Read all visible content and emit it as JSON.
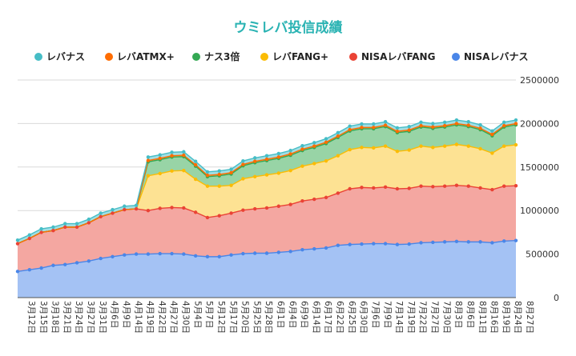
{
  "chart_data": {
    "type": "area",
    "stacked": true,
    "title": "ウミレバ投信成績",
    "legend_position": "top",
    "grid": true,
    "ylim": [
      0,
      2500000
    ],
    "yticks": [
      0,
      500000,
      1000000,
      1500000,
      2000000,
      2500000
    ],
    "x": [
      "3月12日",
      "3月15日",
      "3月18日",
      "3月21日",
      "3月24日",
      "3月27日",
      "3月31日",
      "4月6日",
      "4月9日",
      "4月14日",
      "4月19日",
      "4月22日",
      "4月27日",
      "4月30日",
      "5月4日",
      "5月7日",
      "5月12日",
      "5月17日",
      "5月20日",
      "5月25日",
      "5月28日",
      "6月1日",
      "6月4日",
      "6月9日",
      "6月14日",
      "6月17日",
      "6月22日",
      "6月25日",
      "6月30日",
      "7月6日",
      "7月9日",
      "7月14日",
      "7月19日",
      "7月22日",
      "7月27日",
      "7月30日",
      "8月3日",
      "8月6日",
      "8月11日",
      "8月16日",
      "8月19日",
      "8月24日",
      "8月27日"
    ],
    "series": [
      {
        "name": "NISAレバナス",
        "color": "#4a86e8",
        "fill": "#a4c2f4",
        "values": [
          300000,
          320000,
          340000,
          370000,
          380000,
          400000,
          420000,
          450000,
          470000,
          490000,
          500000,
          500000,
          505000,
          505000,
          500000,
          480000,
          470000,
          470000,
          490000,
          505000,
          510000,
          510000,
          520000,
          530000,
          550000,
          560000,
          570000,
          600000,
          610000,
          615000,
          620000,
          620000,
          610000,
          615000,
          630000,
          635000,
          640000,
          645000,
          640000,
          640000,
          630000,
          650000,
          655000
        ]
      },
      {
        "name": "NISAレバFANG",
        "color": "#ea4335",
        "fill": "#f4a7a1",
        "values": [
          320000,
          360000,
          410000,
          400000,
          430000,
          410000,
          440000,
          480000,
          500000,
          520000,
          520000,
          500000,
          520000,
          530000,
          530000,
          500000,
          450000,
          470000,
          480000,
          500000,
          510000,
          520000,
          530000,
          540000,
          560000,
          570000,
          580000,
          600000,
          640000,
          650000,
          640000,
          650000,
          640000,
          640000,
          650000,
          640000,
          640000,
          645000,
          640000,
          620000,
          610000,
          630000,
          630000
        ]
      },
      {
        "name": "レバFANG+",
        "color": "#fbbc04",
        "fill": "#fde293",
        "values": [
          0,
          0,
          0,
          0,
          0,
          0,
          0,
          0,
          0,
          0,
          0,
          400000,
          400000,
          420000,
          430000,
          380000,
          360000,
          340000,
          320000,
          360000,
          370000,
          380000,
          380000,
          390000,
          400000,
          410000,
          420000,
          430000,
          450000,
          460000,
          460000,
          470000,
          430000,
          440000,
          460000,
          450000,
          460000,
          470000,
          460000,
          450000,
          420000,
          460000,
          470000
        ]
      },
      {
        "name": "ナス3倍",
        "color": "#34a853",
        "fill": "#98d4a6",
        "values": [
          0,
          0,
          0,
          0,
          0,
          0,
          0,
          0,
          0,
          0,
          0,
          160000,
          160000,
          160000,
          160000,
          150000,
          110000,
          120000,
          130000,
          150000,
          160000,
          165000,
          170000,
          175000,
          180000,
          185000,
          200000,
          210000,
          215000,
          215000,
          220000,
          225000,
          215000,
          215000,
          220000,
          220000,
          220000,
          225000,
          225000,
          220000,
          200000,
          220000,
          230000
        ]
      },
      {
        "name": "レバATMX+",
        "color": "#ff6d01",
        "fill": "#ffb27a",
        "values": [
          0,
          0,
          0,
          0,
          0,
          0,
          0,
          0,
          0,
          0,
          0,
          15000,
          15000,
          15000,
          15000,
          15000,
          15000,
          15000,
          15000,
          15000,
          15000,
          15000,
          15000,
          15000,
          15000,
          15000,
          15000,
          15000,
          15000,
          15000,
          15000,
          15000,
          15000,
          15000,
          15000,
          15000,
          15000,
          15000,
          15000,
          15000,
          15000,
          15000,
          15000
        ]
      },
      {
        "name": "レバナス",
        "color": "#46bdc6",
        "fill": "#a2dee3",
        "values": [
          40000,
          40000,
          40000,
          40000,
          40000,
          40000,
          40000,
          40000,
          40000,
          40000,
          40000,
          40000,
          40000,
          40000,
          40000,
          40000,
          40000,
          40000,
          40000,
          40000,
          40000,
          40000,
          40000,
          40000,
          40000,
          40000,
          40000,
          40000,
          40000,
          40000,
          40000,
          40000,
          40000,
          40000,
          40000,
          40000,
          40000,
          40000,
          40000,
          40000,
          40000,
          40000,
          40000
        ]
      }
    ],
    "legend_order": [
      "レバナス",
      "レバATMX+",
      "ナス3倍",
      "レバFANG+",
      "NISAレバFANG",
      "NISAレバナス"
    ]
  }
}
